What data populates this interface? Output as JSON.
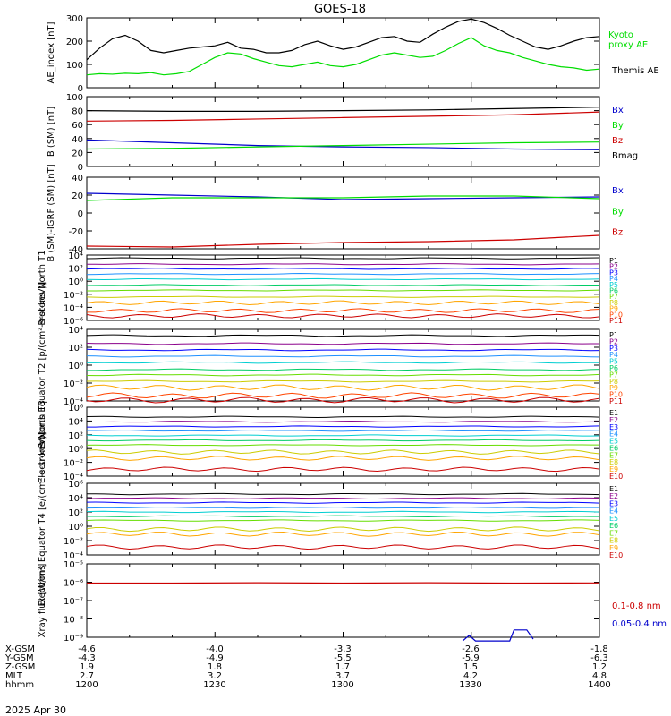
{
  "title": "GOES-18",
  "date": "2025 Apr 30",
  "colors": {
    "axis": "#000000",
    "black": "#000000",
    "green": "#00dd00",
    "blue": "#0000cc",
    "red": "#cc0000",
    "p_colors": [
      "#000000",
      "#8b008b",
      "#0000ff",
      "#1e90ff",
      "#00ced1",
      "#00cc66",
      "#66dd00",
      "#cccc00",
      "#ffa500",
      "#ff4500",
      "#cc0000"
    ],
    "e_colors": [
      "#000000",
      "#8b008b",
      "#0000ff",
      "#1e90ff",
      "#00ced1",
      "#00cc66",
      "#66dd00",
      "#cccc00",
      "#ffa500",
      "#cc0000"
    ]
  },
  "bottom_axis": {
    "rows": [
      {
        "label": "X-GSM",
        "values": [
          "-4.6",
          "-4.0",
          "-3.3",
          "-2.6",
          "-1.8"
        ]
      },
      {
        "label": "Y-GSM",
        "values": [
          "-4.3",
          "-4.9",
          "-5.5",
          "-5.9",
          "-6.3"
        ]
      },
      {
        "label": "Z-GSM",
        "values": [
          "1.9",
          "1.8",
          "1.7",
          "1.5",
          "1.2"
        ]
      },
      {
        "label": "MLT",
        "values": [
          "2.7",
          "3.2",
          "3.7",
          "4.2",
          "4.8"
        ]
      },
      {
        "label": "hhmm",
        "values": [
          "1200",
          "1230",
          "1300",
          "1330",
          "1400"
        ]
      }
    ]
  },
  "chart_data": [
    {
      "type": "line",
      "ylabel": "AE_index [nT]",
      "ylim": [
        0,
        300
      ],
      "yticks": [
        "0",
        "100",
        "200",
        "300"
      ],
      "x": [
        0,
        3,
        6,
        9,
        12,
        15,
        18,
        21,
        24,
        27,
        30,
        33,
        36,
        39,
        42,
        45,
        48,
        51,
        54,
        57,
        60,
        63,
        66,
        69,
        72,
        75,
        78,
        81,
        84,
        87,
        90,
        93,
        96,
        99,
        102,
        105,
        108,
        111,
        114,
        117,
        120
      ],
      "series": [
        {
          "name": "Kyoto proxy AE",
          "color": "green",
          "values": [
            55,
            60,
            58,
            62,
            60,
            65,
            55,
            60,
            70,
            100,
            130,
            150,
            145,
            125,
            110,
            95,
            90,
            100,
            110,
            95,
            90,
            100,
            120,
            140,
            150,
            140,
            130,
            135,
            160,
            190,
            215,
            180,
            160,
            150,
            130,
            115,
            100,
            90,
            85,
            75,
            80
          ]
        },
        {
          "name": "Themis AE",
          "color": "black",
          "values": [
            120,
            170,
            210,
            225,
            200,
            160,
            150,
            160,
            170,
            175,
            180,
            195,
            170,
            165,
            150,
            150,
            160,
            185,
            200,
            180,
            165,
            175,
            195,
            215,
            220,
            200,
            195,
            230,
            260,
            285,
            295,
            280,
            255,
            225,
            200,
            175,
            165,
            180,
            200,
            215,
            220
          ]
        }
      ]
    },
    {
      "type": "line",
      "ylabel": "B (SM) [nT]",
      "ylim": [
        0,
        100
      ],
      "yticks": [
        "0",
        "20",
        "40",
        "60",
        "80",
        "100"
      ],
      "x": [
        0,
        20,
        40,
        60,
        80,
        100,
        120
      ],
      "series": [
        {
          "name": "Bx",
          "color": "blue",
          "values": [
            38,
            34,
            30,
            28,
            27,
            25,
            24
          ]
        },
        {
          "name": "By",
          "color": "green",
          "values": [
            25,
            26,
            28,
            30,
            32,
            34,
            35
          ]
        },
        {
          "name": "Bz",
          "color": "red",
          "values": [
            65,
            66,
            68,
            70,
            72,
            74,
            78
          ]
        },
        {
          "name": "Bmag",
          "color": "black",
          "values": [
            80,
            79,
            79,
            80,
            81,
            83,
            85
          ]
        }
      ]
    },
    {
      "type": "line",
      "ylabel": "B (SM)-IGRF (SM) [nT]",
      "ylim": [
        -40,
        40
      ],
      "yticks": [
        "-40",
        "-20",
        "0",
        "20",
        "40"
      ],
      "x": [
        0,
        20,
        40,
        60,
        80,
        100,
        120
      ],
      "series": [
        {
          "name": "Bx",
          "color": "blue",
          "values": [
            22,
            20,
            18,
            15,
            16,
            17,
            18
          ]
        },
        {
          "name": "By",
          "color": "green",
          "values": [
            14,
            17,
            17,
            17,
            19,
            19,
            16
          ]
        },
        {
          "name": "Bz",
          "color": "red",
          "values": [
            -37,
            -38,
            -35,
            -33,
            -32,
            -30,
            -25
          ]
        }
      ]
    },
    {
      "type": "line",
      "log": true,
      "ylabel": "Protons North T1",
      "ylim_exp": [
        -6,
        4
      ],
      "yticks": [
        "10⁴",
        "10²",
        "10⁰",
        "10⁻²",
        "10⁻⁴",
        "10⁻⁶"
      ],
      "series_labels": [
        "P1",
        "P2",
        "P3",
        "P4",
        "P5",
        "P6",
        "P7",
        "P8",
        "P9",
        "P10",
        "P11"
      ],
      "log_levels": [
        3.5,
        2.6,
        1.9,
        1.1,
        0.3,
        -0.6,
        -1.4,
        -2.4,
        -3.3,
        -4.5,
        -5.3
      ]
    },
    {
      "type": "line",
      "log": true,
      "ylabel": "Protons Equator T2 [p/(cm²-s-sr-keV)]",
      "ylim_exp": [
        -4,
        4
      ],
      "yticks": [
        "10⁴",
        "10²",
        "10⁰",
        "10⁻²",
        "10⁻⁴"
      ],
      "series_labels": [
        "P1",
        "P2",
        "P3",
        "P4",
        "P5",
        "P6",
        "P7",
        "P8",
        "P9",
        "P10",
        "P11"
      ],
      "log_levels": [
        3.3,
        2.4,
        1.7,
        1.0,
        0.3,
        -0.5,
        -1.1,
        -1.8,
        -2.5,
        -3.4,
        -3.9
      ]
    },
    {
      "type": "line",
      "log": true,
      "ylabel": "Electrons North T3",
      "ylim_exp": [
        -4,
        6
      ],
      "yticks": [
        "10⁶",
        "10⁴",
        "10²",
        "10⁰",
        "10⁻²",
        "10⁻⁴"
      ],
      "series_labels": [
        "E1",
        "E2",
        "E3",
        "E4",
        "E5",
        "E6",
        "E7",
        "E8",
        "E9",
        "E10"
      ],
      "log_levels": [
        4.6,
        3.9,
        3.2,
        2.6,
        1.9,
        1.2,
        0.5,
        -0.5,
        -1.4,
        -3.0
      ]
    },
    {
      "type": "line",
      "log": true,
      "ylabel": "Electrons Equator T4 [e/(cm²-s-sr-keV)]",
      "ylim_exp": [
        -4,
        6
      ],
      "yticks": [
        "10⁶",
        "10⁴",
        "10²",
        "10⁰",
        "10⁻²",
        "10⁻⁴"
      ],
      "series_labels": [
        "E1",
        "E2",
        "E3",
        "E4",
        "E5",
        "E6",
        "E7",
        "E8",
        "E9",
        "E10"
      ],
      "log_levels": [
        4.5,
        3.9,
        3.3,
        2.6,
        2.0,
        1.4,
        0.8,
        -0.4,
        -1.1,
        -2.9
      ]
    },
    {
      "type": "line",
      "log": true,
      "ylabel": "Xray flux [W/m²]",
      "ylim_exp": [
        -9,
        -5
      ],
      "yticks": [
        "10⁻⁵",
        "10⁻⁶",
        "10⁻⁷",
        "10⁻⁸",
        "10⁻⁹"
      ],
      "x": [
        0,
        20,
        40,
        60,
        80,
        100,
        120
      ],
      "series": [
        {
          "name": "0.1-0.8 nm",
          "color": "red",
          "values_exp": [
            -6.05,
            -6.05,
            -6.03,
            -6.05,
            -6.03,
            -6.05,
            -6.04
          ]
        },
        {
          "name": "0.05-0.4 nm",
          "color": "blue",
          "points": [
            [
              88,
              -9.2
            ],
            [
              89.5,
              -8.9
            ],
            [
              91,
              -9.2
            ],
            [
              99,
              -9.2
            ],
            [
              100,
              -8.6
            ],
            [
              103,
              -8.6
            ],
            [
              104.5,
              -9.1
            ]
          ]
        }
      ]
    }
  ]
}
